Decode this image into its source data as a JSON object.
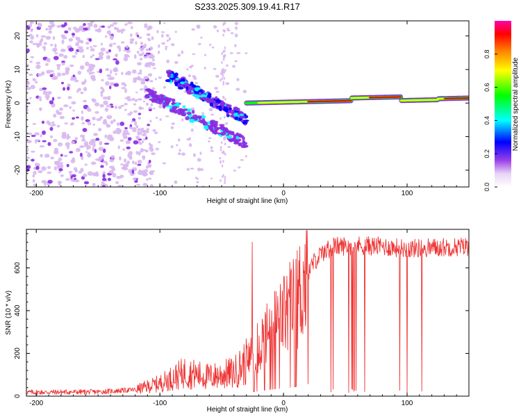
{
  "title": "S233.2025.309.19.41.R17",
  "chart_data": [
    {
      "type": "heatmap",
      "id": "spectrogram",
      "xlabel": "Height of straight line (km)",
      "ylabel": "Frequency (Hz)",
      "xlim": [
        -208,
        150
      ],
      "ylim": [
        -25,
        24.5
      ],
      "x_ticks": [
        -200,
        -100,
        0,
        100
      ],
      "y_ticks": [
        -20,
        -10,
        0,
        10,
        20
      ],
      "colorbar": {
        "label": "Normalized spectral amplitude",
        "range": [
          0.0,
          1.0
        ],
        "ticks": [
          0.0,
          0.2,
          0.4,
          0.6,
          0.8
        ],
        "colormap": [
          "#ffffff",
          "#d8b8f0",
          "#8a2be2",
          "#0000ff",
          "#00ffff",
          "#00ff00",
          "#ffff00",
          "#ff8000",
          "#ff0000",
          "#ff00aa"
        ]
      },
      "features": [
        {
          "name": "scattered noise",
          "x_range": [
            -208,
            -120
          ],
          "freq_range": [
            -25,
            24.5
          ],
          "amplitude": 0.1
        },
        {
          "name": "descending trace upper",
          "from": [
            -92,
            8
          ],
          "to": [
            -30,
            -5
          ],
          "amplitude": 0.35
        },
        {
          "name": "descending trace lower",
          "from": [
            -110,
            3
          ],
          "to": [
            -30,
            -12
          ],
          "amplitude": 0.25
        },
        {
          "name": "carrier line",
          "from": [
            -30,
            0
          ],
          "to": [
            150,
            1.5
          ],
          "amplitude": 0.85
        }
      ]
    },
    {
      "type": "line",
      "id": "snr",
      "xlabel": "Height of straight line (km)",
      "ylabel": "SNR (10 * v/v)",
      "xlim": [
        -208,
        150
      ],
      "ylim": [
        0,
        780
      ],
      "x_ticks": [
        -200,
        -100,
        0,
        100
      ],
      "y_ticks": [
        0,
        200,
        400,
        600
      ],
      "color": "#ee3333",
      "series": [
        {
          "name": "SNR",
          "trend_x": [
            -208,
            -150,
            -120,
            -100,
            -80,
            -60,
            -40,
            -30,
            -20,
            -10,
            0,
            10,
            20,
            25,
            30,
            40,
            60,
            80,
            100,
            120,
            150
          ],
          "trend_y": [
            18,
            20,
            30,
            60,
            110,
            90,
            110,
            160,
            240,
            320,
            380,
            440,
            580,
            630,
            660,
            700,
            705,
            700,
            690,
            695,
            700
          ]
        }
      ]
    }
  ]
}
